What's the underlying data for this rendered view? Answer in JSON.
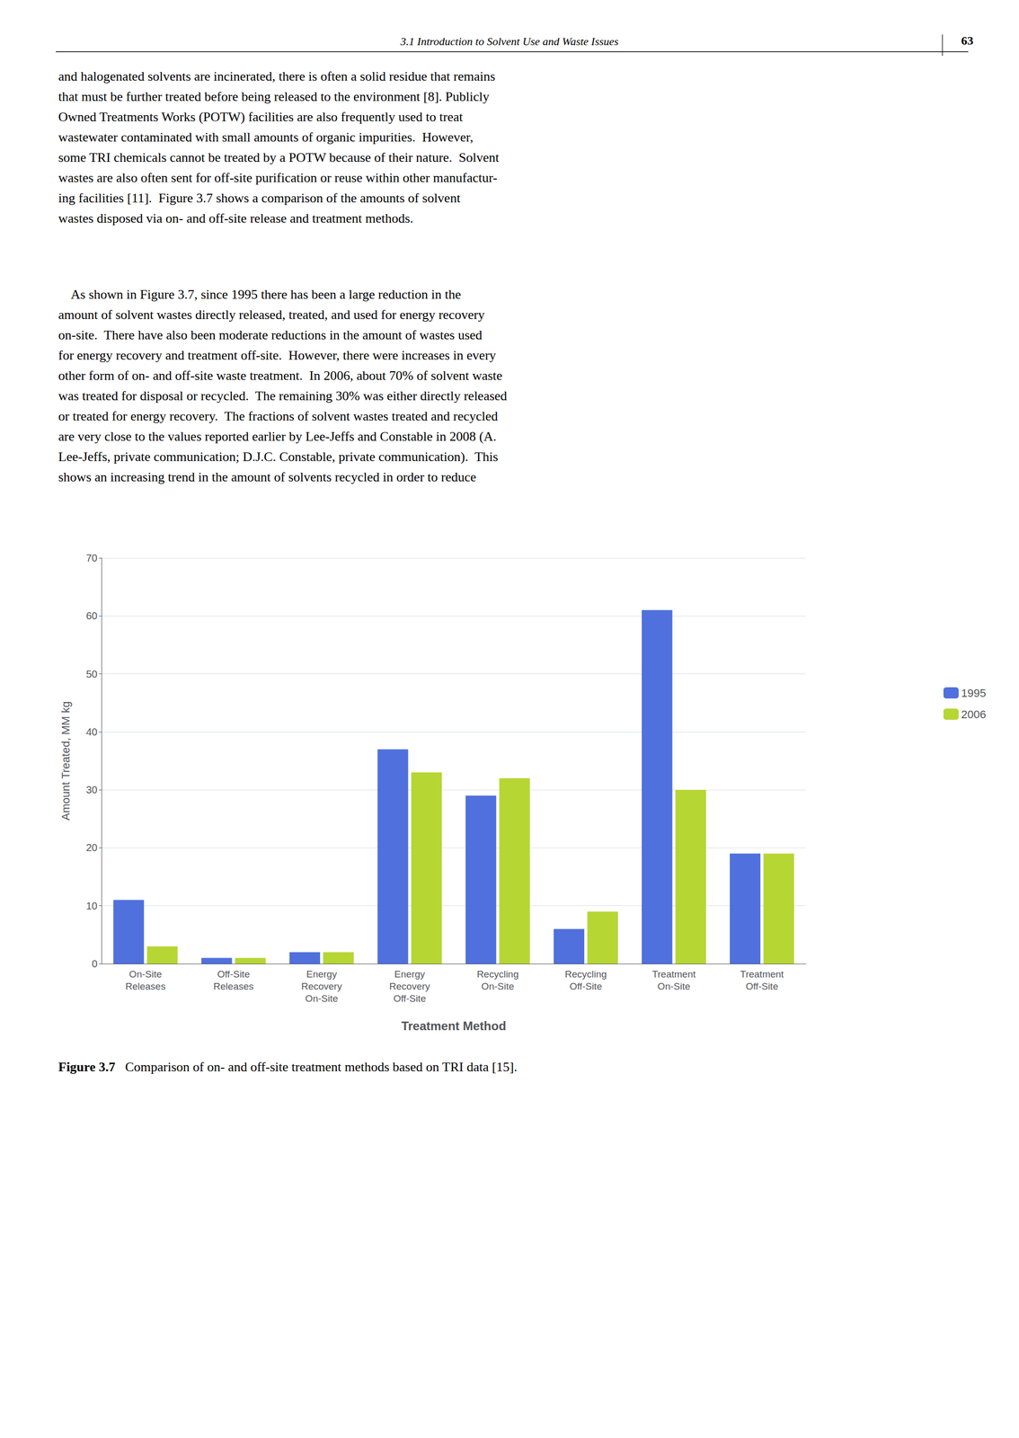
{
  "chart_data": {
    "type": "bar",
    "categories": [
      "On-Site\nReleases",
      "Off-Site\nReleases",
      "Energy\nRecovery\nOn-Site",
      "Energy\nRecovery\nOff-Site",
      "Recycling\nOn-Site",
      "Recycling\nOff-Site",
      "Treatment\nOn-Site",
      "Treatment\nOff-Site"
    ],
    "series": [
      {
        "name": "1995",
        "values": [
          11,
          1,
          2,
          37,
          29,
          6,
          61,
          19
        ]
      },
      {
        "name": "2006",
        "values": [
          3,
          1,
          2,
          33,
          32,
          9,
          30,
          19
        ]
      }
    ],
    "xlabel": "Treatment Method",
    "ylabel": "Amount Treated, MM kg",
    "ylim": [
      0,
      70
    ],
    "yticks": [
      0,
      10,
      20,
      30,
      40,
      50,
      60,
      70
    ],
    "grid": true,
    "legend": "right",
    "annotations": [
      "3.1 Introduction to Solvent Use and Waste Issues",
      "63",
      "and halogenated solvents are incinerated, there is often a solid residue that remains\nthat must be further treated before being released to the environment [8]. Publicly\nOwned Treatments Works (POTW) facilities are also frequently used to treat\nwastewater contaminated with small amounts of organic impurities.  However,\nsome TRI chemicals cannot be treated by a POTW because of their nature.  Solvent\nwastes are also often sent for off-site purification or reuse within other manufactur-\ning facilities [11].  Figure 3.7 shows a comparison of the amounts of solvent\nwastes disposed via on- and off-site release and treatment methods.",
      "    As shown in Figure 3.7, since 1995 there has been a large reduction in the\namount of solvent wastes directly released, treated, and used for energy recovery\non-site.  There have also been moderate reductions in the amount of wastes used\nfor energy recovery and treatment off-site.  However, there were increases in every\nother form of on- and off-site waste treatment.  In 2006, about 70% of solvent waste\nwas treated for disposal or recycled.  The remaining 30% was either directly released\nor treated for energy recovery.  The fractions of solvent wastes treated and recycled\nare very close to the values reported earlier by Lee-Jeffs and Constable in 2008 (A.\nLee-Jeffs, private communication; D.J.C. Constable, private communication).  This\nshows an increasing trend in the amount of solvents recycled in order to reduce",
      "Figure 3.7",
      "   Comparison of on- and off-site treatment methods based on TRI data [15]."
    ]
  }
}
